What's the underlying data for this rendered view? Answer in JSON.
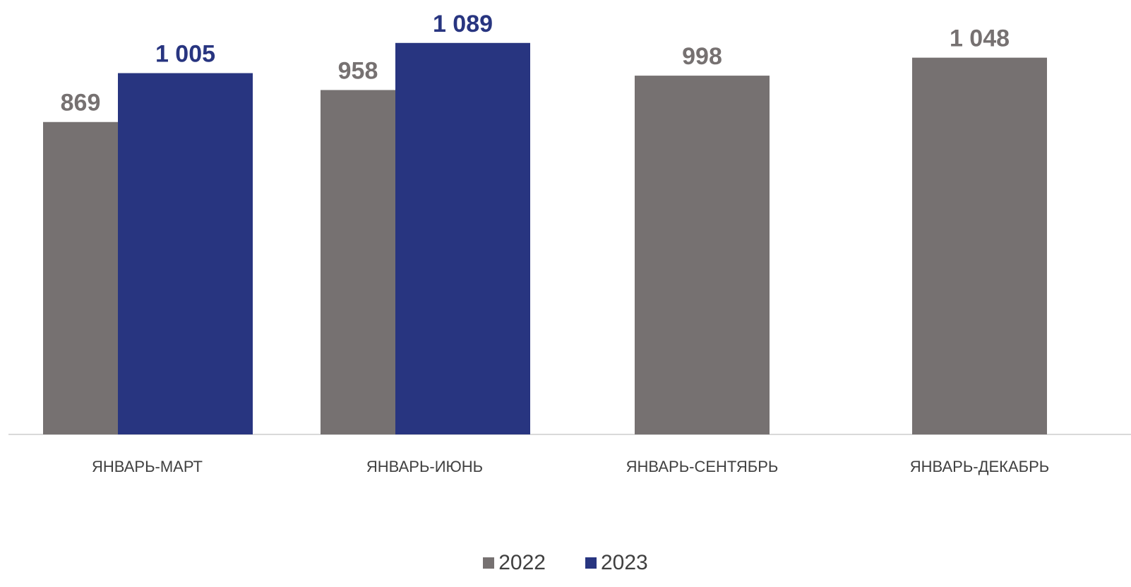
{
  "chart_data": {
    "type": "bar",
    "categories": [
      "ЯНВАРЬ-МАРТ",
      "ЯНВАРЬ-ИЮНЬ",
      "ЯНВАРЬ-СЕНТЯБРЬ",
      "ЯНВАРЬ-ДЕКАБРЬ"
    ],
    "series": [
      {
        "name": "2022",
        "color": "#767171",
        "values": [
          869,
          958,
          998,
          1048
        ],
        "labels": [
          "869",
          "958",
          "998",
          "1 048"
        ]
      },
      {
        "name": "2023",
        "color": "#283580",
        "values": [
          1005,
          1089,
          null,
          null
        ],
        "labels": [
          "1 005",
          "1 089",
          "",
          ""
        ]
      }
    ],
    "ylim": [
      0,
      1120
    ],
    "grid": false,
    "legend_position": "bottom"
  }
}
